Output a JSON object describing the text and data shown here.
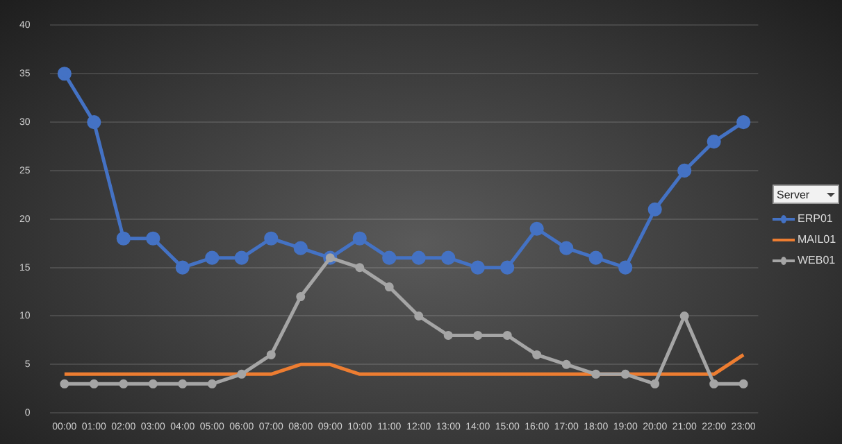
{
  "chart_data": {
    "type": "line",
    "legend_title": "Server",
    "legend": "right",
    "categories": [
      "00:00",
      "01:00",
      "02:00",
      "03:00",
      "04:00",
      "05:00",
      "06:00",
      "07:00",
      "08:00",
      "09:00",
      "10:00",
      "11:00",
      "12:00",
      "13:00",
      "14:00",
      "15:00",
      "16:00",
      "17:00",
      "18:00",
      "19:00",
      "20:00",
      "21:00",
      "22:00",
      "23:00"
    ],
    "series": [
      {
        "name": "ERP01",
        "color": "#4472c4",
        "marker": "circle",
        "values": [
          35,
          30,
          18,
          18,
          15,
          16,
          16,
          18,
          17,
          16,
          18,
          16,
          16,
          16,
          15,
          15,
          19,
          17,
          16,
          15,
          21,
          25,
          28,
          30
        ]
      },
      {
        "name": "MAIL01",
        "color": "#ed7d31",
        "marker": "none",
        "values": [
          4,
          4,
          4,
          4,
          4,
          4,
          4,
          4,
          5,
          5,
          4,
          4,
          4,
          4,
          4,
          4,
          4,
          4,
          4,
          4,
          4,
          4,
          4,
          6
        ]
      },
      {
        "name": "WEB01",
        "color": "#a5a5a5",
        "marker": "circle",
        "values": [
          3,
          3,
          3,
          3,
          3,
          3,
          4,
          6,
          12,
          16,
          15,
          13,
          10,
          8,
          8,
          8,
          6,
          5,
          4,
          4,
          3,
          10,
          3,
          3
        ]
      }
    ],
    "ylim": [
      0,
      40
    ],
    "yticks": [
      0,
      5,
      10,
      15,
      20,
      25,
      30,
      35,
      40
    ],
    "grid": "y",
    "line_style": "solid"
  }
}
